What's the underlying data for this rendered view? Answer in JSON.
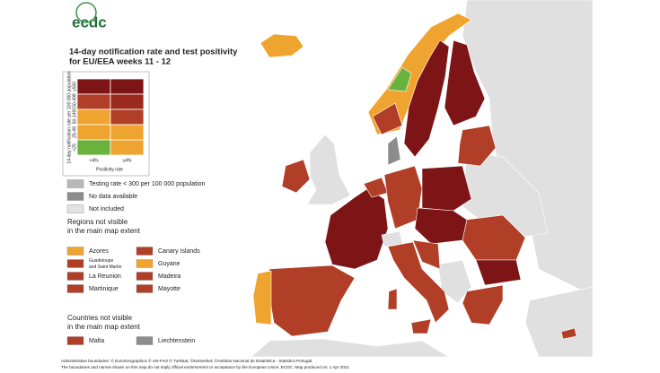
{
  "logo": "ecdc",
  "title": [
    "14-day notification rate and test positivity",
    "for EU/EEA weeks 11 - 12"
  ],
  "matrix": {
    "y_label": "14-day notification rate per 100 000 population",
    "rows": [
      "≥500",
      "150-499",
      "50-149",
      "25-49",
      "<25"
    ],
    "columns": [
      "<4%",
      "≥4%"
    ],
    "x_label": "Positivity rate",
    "colors": [
      [
        "#7d1416",
        "#7d1416"
      ],
      [
        "#b13e26",
        "#9a2a1d"
      ],
      [
        "#f0a430",
        "#b13e26"
      ],
      [
        "#f0a430",
        "#f0a430"
      ],
      [
        "#6ab23e",
        "#f0a430"
      ]
    ]
  },
  "other_legend": [
    {
      "label": "Testing rate < 300 per 100 000 population",
      "color": "#b8b8b8"
    },
    {
      "label": "No data available",
      "color": "#8c8c8c"
    },
    {
      "label": "Not included",
      "color": "#e3e3e3"
    }
  ],
  "regions_heading": [
    "Regions not visible",
    "in the main map extent"
  ],
  "regions": [
    {
      "label": [
        "Azores"
      ],
      "color": "#f0a430"
    },
    {
      "label": [
        "Canary Islands"
      ],
      "color": "#b13e26"
    },
    {
      "label": [
        "Guadeloupe",
        "and Saint Martin"
      ],
      "color": "#b13e26"
    },
    {
      "label": [
        "Guyane"
      ],
      "color": "#f0a430"
    },
    {
      "label": [
        "La Reunion"
      ],
      "color": "#b13e26"
    },
    {
      "label": [
        "Madeira"
      ],
      "color": "#b13e26"
    },
    {
      "label": [
        "Martinique"
      ],
      "color": "#b13e26"
    },
    {
      "label": [
        "Mayotte"
      ],
      "color": "#b13e26"
    }
  ],
  "countries_heading": [
    "Countries not visible",
    "in the main map extent"
  ],
  "countries": [
    {
      "label": "Malta",
      "color": "#b13e26"
    },
    {
      "label": "Liechtenstein",
      "color": "#8c8c8c"
    }
  ],
  "footer": [
    "Administrative boundaries: © EuroGeographics © UN-FAO © Turkstat; ©Kartverket; ©Instituto Nacional de Estatística - Statistics Portugal.",
    "The boundaries and names shown on this map do not imply official endorsement or acceptance by the European Union. ECDC. Map produced on: 1 Apr 2021"
  ]
}
